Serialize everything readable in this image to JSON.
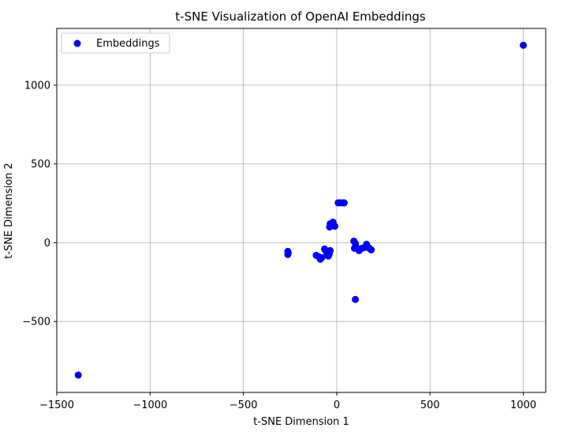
{
  "chart_data": {
    "type": "scatter",
    "title": "t-SNE Visualization of OpenAI Embeddings",
    "xlabel": "t-SNE Dimension 1",
    "ylabel": "t-SNE Dimension 2",
    "xlim": [
      -1500,
      1120
    ],
    "ylim": [
      -950,
      1360
    ],
    "xticks": [
      -1500,
      -1000,
      -500,
      0,
      500,
      1000
    ],
    "yticks": [
      -500,
      0,
      500,
      1000
    ],
    "xtick_labels": [
      "−1500",
      "−1000",
      "−500",
      "0",
      "500",
      "1000"
    ],
    "ytick_labels": [
      "−500",
      "0",
      "500",
      "1000"
    ],
    "grid": true,
    "legend_placement": "top-left",
    "color": "#0000ff",
    "series": [
      {
        "name": "Embeddings",
        "points": [
          [
            1000,
            1253
          ],
          [
            -1385,
            -840
          ],
          [
            8,
            253
          ],
          [
            20,
            253
          ],
          [
            33,
            253
          ],
          [
            40,
            253
          ],
          [
            -35,
            120
          ],
          [
            -20,
            130
          ],
          [
            -10,
            105
          ],
          [
            -38,
            100
          ],
          [
            -25,
            110
          ],
          [
            -262,
            -55
          ],
          [
            -262,
            -75
          ],
          [
            -260,
            -65
          ],
          [
            -110,
            -80
          ],
          [
            -95,
            -90
          ],
          [
            -88,
            -105
          ],
          [
            -80,
            -95
          ],
          [
            -65,
            -40
          ],
          [
            -55,
            -60
          ],
          [
            -45,
            -85
          ],
          [
            -40,
            -70
          ],
          [
            -35,
            -50
          ],
          [
            -48,
            -75
          ],
          [
            92,
            10
          ],
          [
            100,
            -5
          ],
          [
            95,
            -35
          ],
          [
            105,
            -30
          ],
          [
            115,
            -40
          ],
          [
            120,
            -50
          ],
          [
            160,
            -10
          ],
          [
            165,
            -25
          ],
          [
            175,
            -35
          ],
          [
            185,
            -45
          ],
          [
            135,
            -35
          ],
          [
            150,
            -30
          ],
          [
            100,
            -360
          ]
        ]
      }
    ]
  }
}
